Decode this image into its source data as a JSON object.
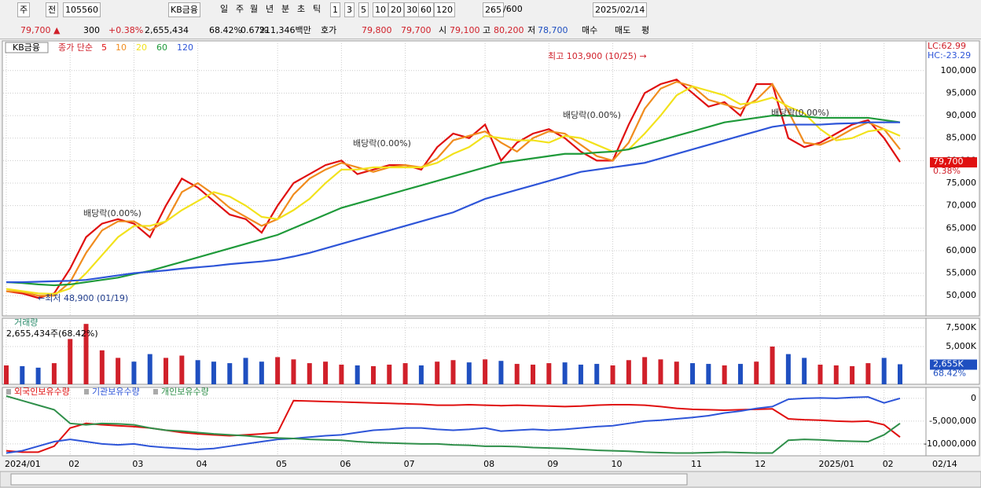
{
  "toolbar": {
    "row1": [
      "주",
      "전",
      "105560",
      "KB금융",
      "일",
      "주",
      "월",
      "년",
      "분",
      "초",
      "틱",
      "1",
      "3",
      "5",
      "10",
      "20",
      "30",
      "60",
      "120",
      "265",
      "/600",
      "2025/02/14"
    ],
    "row2": [
      "79,700 ▲",
      "300",
      "+0.38%",
      "2,655,434",
      "68.42%",
      "0.67%",
      "211,346백만",
      "호가",
      "79,800",
      "79,700",
      "시",
      "79,100",
      "고",
      "80,200",
      "저",
      "78,700",
      "매수",
      "매도",
      "평"
    ]
  },
  "chart_data": [
    {
      "type": "line",
      "name_label": "KB금융",
      "legend_title": "종가 단순",
      "categories": [
        "2024/01",
        null,
        null,
        null,
        "02",
        null,
        null,
        null,
        "03",
        null,
        null,
        null,
        "04",
        null,
        null,
        null,
        null,
        "05",
        null,
        null,
        null,
        "06",
        null,
        null,
        null,
        "07",
        null,
        null,
        null,
        null,
        "08",
        null,
        null,
        null,
        "09",
        null,
        null,
        null,
        "10",
        null,
        null,
        null,
        null,
        "11",
        null,
        null,
        null,
        "12",
        null,
        null,
        null,
        "2025/01",
        null,
        null,
        null,
        "02",
        null
      ],
      "x_end_label": "02/14",
      "series": [
        {
          "name": "5",
          "color": "#e01010",
          "values": [
            51000,
            50500,
            49500,
            50500,
            56000,
            63000,
            66000,
            67000,
            66000,
            63000,
            70000,
            76000,
            74000,
            71000,
            68000,
            67000,
            64000,
            70000,
            75000,
            77000,
            79000,
            80000,
            77000,
            78000,
            79000,
            79000,
            78000,
            83000,
            86000,
            85000,
            88000,
            80000,
            84000,
            86000,
            87000,
            85000,
            82000,
            80000,
            80000,
            88000,
            95000,
            97000,
            98000,
            95000,
            92000,
            93000,
            90000,
            97000,
            97000,
            85000,
            83000,
            84000,
            86000,
            88000,
            89000,
            85000,
            79700
          ]
        },
        {
          "name": "10",
          "color": "#f08c1e",
          "values": [
            51000,
            50800,
            50000,
            50000,
            53000,
            59500,
            64500,
            66500,
            66500,
            64500,
            66500,
            73000,
            75000,
            72500,
            69500,
            67500,
            65500,
            67000,
            72500,
            76000,
            78000,
            79500,
            78500,
            77500,
            78500,
            79000,
            78500,
            80500,
            84500,
            85500,
            86500,
            84000,
            82000,
            85000,
            86500,
            86000,
            83500,
            81000,
            80000,
            84000,
            91500,
            96000,
            97500,
            96500,
            93500,
            92500,
            91500,
            93500,
            97000,
            91000,
            84000,
            83500,
            85000,
            87000,
            88500,
            87000,
            82500
          ]
        },
        {
          "name": "20",
          "color": "#f2e21c",
          "values": [
            51500,
            51000,
            50500,
            50400,
            51600,
            55000,
            59000,
            63000,
            65500,
            65500,
            66500,
            69000,
            71000,
            73000,
            72000,
            70000,
            67500,
            67000,
            69000,
            71500,
            75000,
            78000,
            78000,
            78500,
            78500,
            78500,
            78500,
            79500,
            81500,
            83000,
            85500,
            85000,
            84500,
            84500,
            84000,
            85500,
            85000,
            83500,
            82000,
            82500,
            86000,
            90000,
            94500,
            96500,
            95500,
            94500,
            92500,
            93000,
            94000,
            92000,
            90500,
            87000,
            84500,
            85000,
            86500,
            87000,
            85500
          ]
        },
        {
          "name": "60",
          "color": "#1f9a3a",
          "values": [
            53000,
            52800,
            52500,
            52300,
            52500,
            53000,
            53500,
            54000,
            54800,
            55500,
            56500,
            57500,
            58500,
            59500,
            60500,
            61500,
            62500,
            63500,
            65000,
            66500,
            68000,
            69500,
            70500,
            71500,
            72500,
            73500,
            74500,
            75500,
            76500,
            77500,
            78500,
            79500,
            80000,
            80500,
            81000,
            81500,
            81500,
            81800,
            82000,
            82500,
            83500,
            84500,
            85500,
            86500,
            87500,
            88500,
            89000,
            89500,
            90000,
            90000,
            89800,
            89500,
            89500,
            89500,
            89500,
            89000,
            88500
          ]
        },
        {
          "name": "120",
          "color": "#2e55d8",
          "values": [
            53000,
            53000,
            53100,
            53200,
            53300,
            53500,
            54000,
            54500,
            55000,
            55300,
            55600,
            56000,
            56300,
            56600,
            57000,
            57300,
            57600,
            58000,
            58700,
            59500,
            60500,
            61500,
            62500,
            63500,
            64500,
            65500,
            66500,
            67500,
            68500,
            70000,
            71500,
            72500,
            73500,
            74500,
            75500,
            76500,
            77500,
            78000,
            78500,
            79000,
            79500,
            80500,
            81500,
            82500,
            83500,
            84500,
            85500,
            86500,
            87500,
            88000,
            88000,
            88000,
            88200,
            88300,
            88500,
            88500,
            88500
          ]
        }
      ],
      "ylim": [
        45500,
        106600
      ],
      "yticks": [
        {
          "value": 50000,
          "label": "50,000"
        },
        {
          "value": 55000,
          "label": "55,000"
        },
        {
          "value": 60000,
          "label": "60,000"
        },
        {
          "value": 65000,
          "label": "65,000"
        },
        {
          "value": 70000,
          "label": "70,000"
        },
        {
          "value": 75000,
          "label": "75,000"
        },
        {
          "value": 80000,
          "label": "80,000"
        },
        {
          "value": 85000,
          "label": "85,000"
        },
        {
          "value": 90000,
          "label": "90,000"
        },
        {
          "value": 95000,
          "label": "95,000"
        },
        {
          "value": 100000,
          "label": "100,000"
        }
      ],
      "annotations": [
        "최고 103,900 (10/25) →",
        "←최저 48,900 (01/19)",
        "배당락(0.00%)",
        "배당락(0.00%)",
        "배당락(0.00%)",
        "배당락(0.00%)"
      ],
      "indicator_labels": [
        "LC:62.99",
        "HC:-23.29"
      ],
      "last_value_label": "79,700",
      "change_label": "0.38%",
      "grid": true
    },
    {
      "type": "bar",
      "title": "거래량",
      "subtitle": "2,655,434주(68.42%)",
      "values": [
        2500000,
        2400000,
        2200000,
        2800000,
        6000000,
        8000000,
        4500000,
        3500000,
        3000000,
        4000000,
        3500000,
        3800000,
        3200000,
        3000000,
        2800000,
        3500000,
        3000000,
        3600000,
        3300000,
        2800000,
        3000000,
        2600000,
        2500000,
        2400000,
        2600000,
        2800000,
        2500000,
        3000000,
        3200000,
        2900000,
        3300000,
        3100000,
        2700000,
        2600000,
        2800000,
        2900000,
        2600000,
        2700000,
        2500000,
        3200000,
        3600000,
        3300000,
        3000000,
        2800000,
        2700000,
        2500000,
        2700000,
        3000000,
        5000000,
        4000000,
        3500000,
        2600000,
        2500000,
        2400000,
        2800000,
        3500000,
        2655434
      ],
      "up_color": "#d0202a",
      "down_color": "#1f4fc0",
      "ylim": [
        0,
        8750000
      ],
      "yticks": [
        {
          "value": 5000000,
          "label": "5,000K"
        },
        {
          "value": 7500000,
          "label": "7,500K"
        }
      ],
      "last_value_label": "2,655K",
      "last_pct_label": "68.42%"
    },
    {
      "type": "line",
      "series": [
        {
          "name": "외국인보유수량",
          "color": "#e01010",
          "values": [
            -11500000,
            -11800000,
            -11800000,
            -10500000,
            -6500000,
            -5500000,
            -5800000,
            -6000000,
            -6200000,
            -6500000,
            -7000000,
            -7500000,
            -7800000,
            -8000000,
            -8200000,
            -8000000,
            -7800000,
            -7500000,
            -500000,
            -600000,
            -700000,
            -800000,
            -900000,
            -1000000,
            -1100000,
            -1200000,
            -1300000,
            -1500000,
            -1500000,
            -1400000,
            -1500000,
            -1600000,
            -1500000,
            -1600000,
            -1700000,
            -1800000,
            -1700000,
            -1500000,
            -1400000,
            -1400000,
            -1500000,
            -1800000,
            -2200000,
            -2400000,
            -2500000,
            -2600000,
            -2500000,
            -2400000,
            -2300000,
            -4500000,
            -4700000,
            -4800000,
            -5000000,
            -5100000,
            -5000000,
            -5800000,
            -8500000
          ]
        },
        {
          "name": "기관보유수량",
          "color": "#2e55d8",
          "values": [
            -12000000,
            -11500000,
            -10500000,
            -9500000,
            -9000000,
            -9500000,
            -10000000,
            -10200000,
            -10000000,
            -10500000,
            -10800000,
            -11000000,
            -11200000,
            -11000000,
            -10500000,
            -10000000,
            -9500000,
            -9000000,
            -8800000,
            -8500000,
            -8200000,
            -8000000,
            -7500000,
            -7000000,
            -6800000,
            -6500000,
            -6500000,
            -6800000,
            -7000000,
            -6800000,
            -6500000,
            -7200000,
            -7000000,
            -6800000,
            -7000000,
            -6800000,
            -6500000,
            -6200000,
            -6000000,
            -5500000,
            -5000000,
            -4800000,
            -4500000,
            -4200000,
            -3800000,
            -3200000,
            -2800000,
            -2200000,
            -1800000,
            -200000,
            0,
            100000,
            0,
            200000,
            300000,
            -1000000,
            0
          ]
        },
        {
          "name": "개인보유수량",
          "color": "#2f8f4a",
          "values": [
            500000,
            -500000,
            -1500000,
            -2500000,
            -5500000,
            -5800000,
            -5500000,
            -5600000,
            -5800000,
            -6500000,
            -7000000,
            -7200000,
            -7500000,
            -7800000,
            -8000000,
            -8200000,
            -8500000,
            -8700000,
            -8800000,
            -9000000,
            -9100000,
            -9200000,
            -9500000,
            -9700000,
            -9800000,
            -9900000,
            -10000000,
            -10000000,
            -10200000,
            -10300000,
            -10500000,
            -10500000,
            -10600000,
            -10800000,
            -10900000,
            -11000000,
            -11200000,
            -11400000,
            -11500000,
            -11600000,
            -11800000,
            -11900000,
            -12000000,
            -12000000,
            -11900000,
            -11800000,
            -11900000,
            -12000000,
            -12000000,
            -9200000,
            -9000000,
            -9100000,
            -9300000,
            -9400000,
            -9500000,
            -8000000,
            -5500000
          ]
        }
      ],
      "ylim": [
        -12600000,
        2400000
      ],
      "yticks": [
        0,
        {
          "value": -5000000,
          "label": "-5,000,000"
        },
        {
          "value": -10000000,
          "label": "-10,000,000"
        }
      ]
    }
  ]
}
